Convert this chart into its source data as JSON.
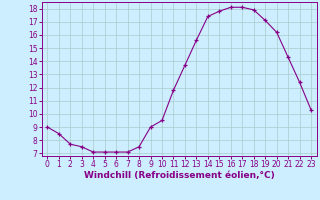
{
  "x": [
    0,
    1,
    2,
    3,
    4,
    5,
    6,
    7,
    8,
    9,
    10,
    11,
    12,
    13,
    14,
    15,
    16,
    17,
    18,
    19,
    20,
    21,
    22,
    23
  ],
  "y": [
    9.0,
    8.5,
    7.7,
    7.5,
    7.1,
    7.1,
    7.1,
    7.1,
    7.5,
    9.0,
    9.5,
    11.8,
    13.7,
    15.6,
    17.4,
    17.8,
    18.1,
    18.1,
    17.9,
    17.1,
    16.2,
    14.3,
    12.4,
    10.3
  ],
  "line_color": "#880088",
  "marker": "+",
  "marker_color": "#880088",
  "bg_color": "#cceeff",
  "grid_color": "#aacccc",
  "xlabel": "Windchill (Refroidissement éolien,°C)",
  "ylim": [
    6.8,
    18.5
  ],
  "xlim": [
    -0.5,
    23.5
  ],
  "yticks": [
    7,
    8,
    9,
    10,
    11,
    12,
    13,
    14,
    15,
    16,
    17,
    18
  ],
  "xticks": [
    0,
    1,
    2,
    3,
    4,
    5,
    6,
    7,
    8,
    9,
    10,
    11,
    12,
    13,
    14,
    15,
    16,
    17,
    18,
    19,
    20,
    21,
    22,
    23
  ],
  "axis_color": "#880088",
  "tick_color": "#880088",
  "label_color": "#880088",
  "label_fontsize": 6.5,
  "tick_fontsize": 5.5
}
